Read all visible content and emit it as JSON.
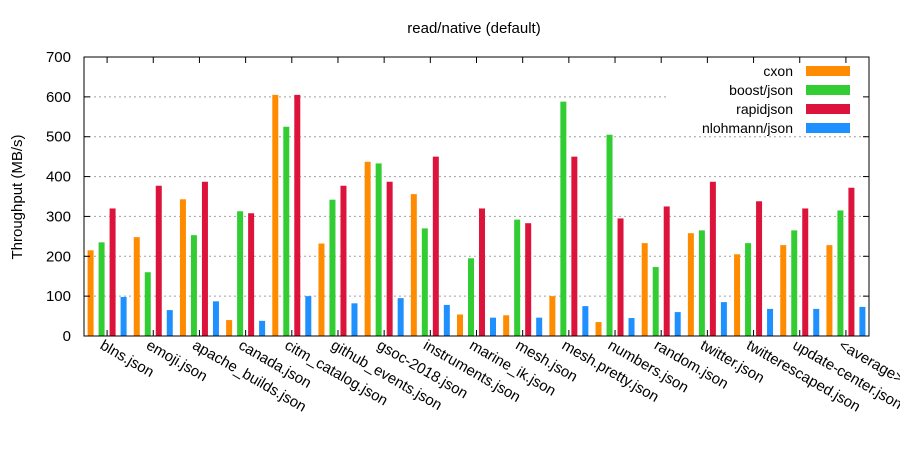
{
  "chart_data": {
    "type": "bar",
    "title": "read/native (default)",
    "ylabel": "Throughput (MB/s)",
    "xlabel": "",
    "ylim": [
      0,
      700
    ],
    "yticks": [
      0,
      100,
      200,
      300,
      400,
      500,
      600,
      700
    ],
    "grid": "horizontal dotted",
    "legend_position": "top-right",
    "categories": [
      "blns.json",
      "emoji.json",
      "apache_builds.json",
      "canada.json",
      "citm_catalog.json",
      "github_events.json",
      "gsoc-2018.json",
      "instruments.json",
      "marine_ik.json",
      "mesh.json",
      "mesh.pretty.json",
      "numbers.json",
      "random.json",
      "twitter.json",
      "twitterescaped.json",
      "update-center.json",
      "<average>"
    ],
    "series": [
      {
        "name": "cxon",
        "color": "#ff8c00",
        "values": [
          215,
          248,
          343,
          40,
          605,
          232,
          437,
          356,
          54,
          52,
          100,
          35,
          233,
          258,
          205,
          228,
          228
        ]
      },
      {
        "name": "boost/json",
        "color": "#32cd32",
        "values": [
          235,
          160,
          253,
          313,
          525,
          342,
          433,
          270,
          195,
          292,
          588,
          505,
          173,
          265,
          233,
          265,
          315
        ]
      },
      {
        "name": "rapidjson",
        "color": "#dc143c",
        "values": [
          320,
          377,
          387,
          308,
          605,
          377,
          387,
          450,
          320,
          283,
          450,
          295,
          325,
          387,
          338,
          320,
          372
        ]
      },
      {
        "name": "nlohmann/json",
        "color": "#1e90ff",
        "values": [
          98,
          65,
          87,
          38,
          100,
          82,
          95,
          78,
          46,
          46,
          75,
          45,
          60,
          85,
          68,
          68,
          73
        ]
      }
    ]
  }
}
